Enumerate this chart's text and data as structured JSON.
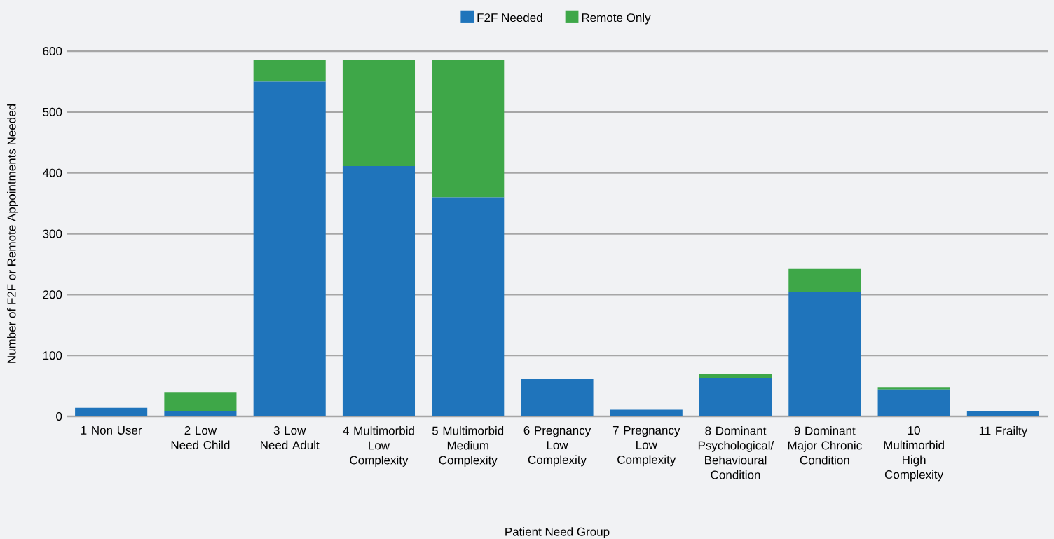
{
  "chart_data": {
    "type": "bar",
    "stacked": true,
    "categories": [
      "1 Non User",
      "2 Low Need Child",
      "3 Low Need Adult",
      "4 Multimorbid Low Complexity",
      "5 Multimorbid Medium Complexity",
      "6 Pregnancy Low Complexity",
      "7 Pregnancy Low Complexity",
      "8 Dominant Psychological/ Behavioural Condition",
      "9 Dominant Major Chronic Condition",
      "10 Multimorbid High Complexity",
      "11 Frailty"
    ],
    "series": [
      {
        "name": "F2F Needed",
        "color": "#1f74bb",
        "values": [
          14,
          8,
          550,
          411,
          360,
          61,
          11,
          63,
          204,
          44,
          8
        ]
      },
      {
        "name": "Remote Only",
        "color": "#3ea748",
        "values": [
          0,
          32,
          36,
          175,
          226,
          0,
          0,
          7,
          38,
          4,
          0
        ]
      }
    ],
    "xlabel": "Patient Need Group",
    "ylabel": "Number of F2F or Remote Appointments Needed",
    "ylim": [
      0,
      600
    ],
    "yticks": [
      0,
      100,
      200,
      300,
      400,
      500,
      600
    ],
    "grid": "y",
    "legend": "top"
  }
}
